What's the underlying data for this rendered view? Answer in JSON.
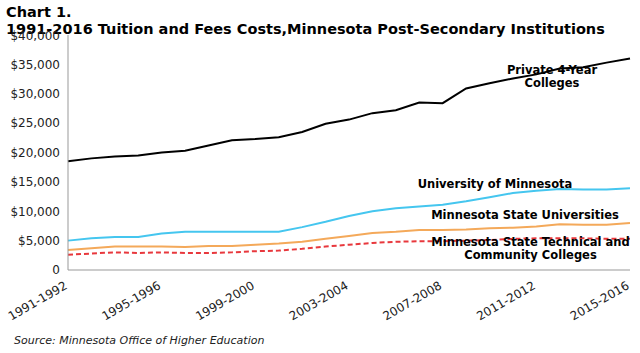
{
  "chart_data": {
    "type": "line",
    "title": "Chart 1.",
    "subtitle": "1991-2016 Tuition and Fees Costs,Minnesota Post-Secondary Institutions",
    "source": "Source: Minnesota Office of Higher Education",
    "categories": [
      "1991-1992",
      null,
      null,
      null,
      "1995-1996",
      null,
      null,
      null,
      "1999-2000",
      null,
      null,
      null,
      "2003-2004",
      null,
      null,
      null,
      "2007-2008",
      null,
      null,
      null,
      "2011-2012",
      null,
      null,
      null,
      "2015-2016"
    ],
    "series": [
      {
        "name": "Private 4-Year Colleges",
        "color": "#000000",
        "line_style": "solid",
        "values": [
          18500,
          19000,
          19300,
          19500,
          20000,
          20300,
          21200,
          22100,
          22300,
          22600,
          23500,
          24900,
          25600,
          26700,
          27200,
          28500,
          28400,
          30900,
          31800,
          32600,
          33300,
          34300,
          34500,
          35300,
          36000
        ]
      },
      {
        "name": "University of Minnesota",
        "color": "#45c6ef",
        "line_style": "solid",
        "values": [
          5000,
          5400,
          5600,
          5600,
          6200,
          6500,
          6500,
          6500,
          6500,
          6500,
          7300,
          8200,
          9200,
          10000,
          10500,
          10800,
          11100,
          11700,
          12400,
          13100,
          13500,
          13800,
          13700,
          13700,
          13900
        ]
      },
      {
        "name": "Minnesota State Universities",
        "color": "#f4a95a",
        "line_style": "solid",
        "values": [
          3400,
          3700,
          4000,
          4000,
          4000,
          3900,
          4100,
          4100,
          4300,
          4500,
          4800,
          5300,
          5800,
          6300,
          6500,
          6800,
          6800,
          6900,
          7100,
          7200,
          7400,
          7800,
          7700,
          7700,
          8000
        ]
      },
      {
        "name": "Minnesota State Technical and Community Colleges",
        "color": "#e8383d",
        "line_style": "dashed",
        "values": [
          2600,
          2800,
          3000,
          2900,
          3000,
          2900,
          2900,
          3000,
          3200,
          3300,
          3600,
          4000,
          4300,
          4600,
          4800,
          4900,
          4900,
          5000,
          5100,
          5300,
          5400,
          5400,
          5400,
          5300,
          5300
        ]
      }
    ],
    "ylim": [
      0,
      40000
    ],
    "yticks": [
      0,
      {
        "value": 5000,
        "label": "$5,000"
      },
      {
        "value": 10000,
        "label": "$10,000"
      },
      {
        "value": 15000,
        "label": "$15,000"
      },
      {
        "value": 20000,
        "label": "$20,000"
      },
      {
        "value": 25000,
        "label": "$25,000"
      },
      {
        "value": 30000,
        "label": "$30,000"
      },
      {
        "value": 35000,
        "label": "$35,000"
      },
      {
        "value": 40000,
        "label": "$40,000"
      }
    ],
    "grid": false,
    "marker": "none"
  }
}
